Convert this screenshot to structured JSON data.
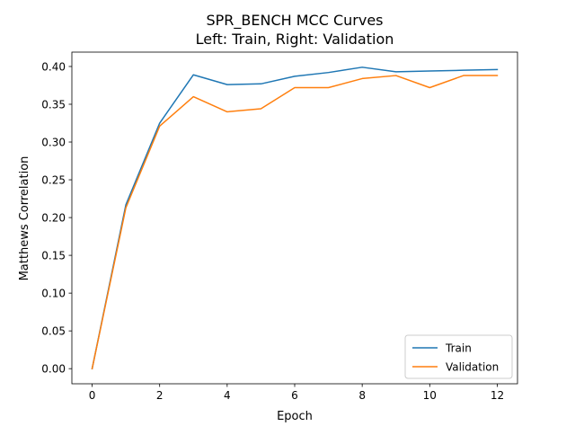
{
  "chart_data": {
    "type": "line",
    "title": "SPR_BENCH MCC Curves",
    "subtitle": "Left: Train, Right: Validation",
    "xlabel": "Epoch",
    "ylabel": "Matthews Correlation",
    "xlim": [
      -0.6,
      12.6
    ],
    "ylim": [
      -0.02,
      0.419
    ],
    "xticks": [
      0,
      2,
      4,
      6,
      8,
      10,
      12
    ],
    "xtick_labels": [
      "0",
      "2",
      "4",
      "6",
      "8",
      "10",
      "12"
    ],
    "yticks": [
      0.0,
      0.05,
      0.1,
      0.15,
      0.2,
      0.25,
      0.3,
      0.35,
      0.4
    ],
    "ytick_labels": [
      "0.00",
      "0.05",
      "0.10",
      "0.15",
      "0.20",
      "0.25",
      "0.30",
      "0.35",
      "0.40"
    ],
    "grid": false,
    "legend_position": "lower-right",
    "x": [
      0,
      1,
      2,
      3,
      4,
      5,
      6,
      7,
      8,
      9,
      10,
      11,
      12
    ],
    "series": [
      {
        "name": "Train",
        "color": "#1f77b4",
        "values": [
          0.0,
          0.217,
          0.325,
          0.389,
          0.376,
          0.377,
          0.387,
          0.392,
          0.399,
          0.393,
          0.394,
          0.395,
          0.396
        ]
      },
      {
        "name": "Validation",
        "color": "#ff7f0e",
        "values": [
          0.0,
          0.213,
          0.321,
          0.36,
          0.34,
          0.344,
          0.372,
          0.372,
          0.384,
          0.388,
          0.372,
          0.388,
          0.388
        ]
      }
    ]
  }
}
